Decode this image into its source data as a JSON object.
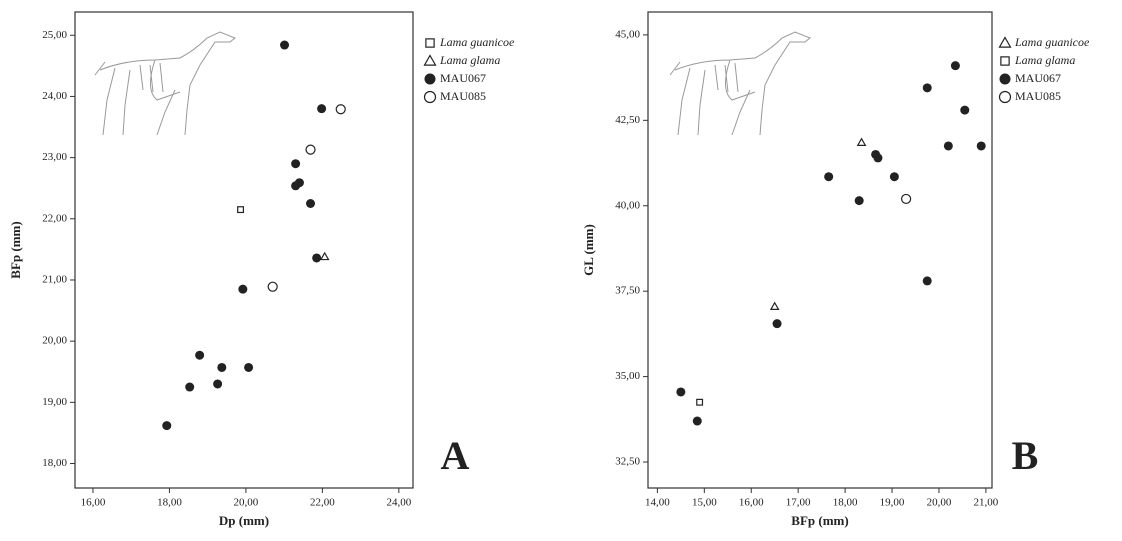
{
  "chart_data": [
    {
      "type": "scatter",
      "annotation": "A",
      "x_label": "Dp (mm)",
      "y_label": "BFp (mm)",
      "xlim": [
        15.53,
        24.37
      ],
      "ylim": [
        17.6,
        25.38
      ],
      "xticks": [
        {
          "value": 16,
          "label": "16,00"
        },
        {
          "value": 18,
          "label": "18,00"
        },
        {
          "value": 20,
          "label": "20,00"
        },
        {
          "value": 22,
          "label": "22,00"
        },
        {
          "value": 24,
          "label": "24,00"
        }
      ],
      "yticks": [
        {
          "value": 18,
          "label": "18,00"
        },
        {
          "value": 19,
          "label": "19,00"
        },
        {
          "value": 20,
          "label": "20,00"
        },
        {
          "value": 21,
          "label": "21,00"
        },
        {
          "value": 22,
          "label": "22,00"
        },
        {
          "value": 23,
          "label": "23,00"
        },
        {
          "value": 24,
          "label": "24,00"
        },
        {
          "value": 25,
          "label": "25,00"
        }
      ],
      "series": [
        {
          "name": "Lama guanicoe",
          "marker": "square",
          "italic": true,
          "color": "#222",
          "x": [
            19.86
          ],
          "values": [
            22.15
          ]
        },
        {
          "name": "Lama glama",
          "marker": "triangle",
          "italic": true,
          "color": "#222",
          "x": [
            22.06
          ],
          "values": [
            21.38
          ]
        },
        {
          "name": "MAU067",
          "marker": "circle",
          "italic": false,
          "color": "#222",
          "x": [
            21.01,
            21.98,
            21.3,
            21.4,
            21.3,
            21.69,
            21.85,
            19.92,
            18.79,
            19.37,
            20.07,
            18.53,
            19.26,
            17.93
          ],
          "values": [
            24.84,
            23.8,
            22.9,
            22.59,
            22.54,
            22.25,
            21.36,
            20.85,
            19.77,
            19.57,
            19.57,
            19.25,
            19.3,
            18.62
          ]
        },
        {
          "name": "MAU085",
          "marker": "open-circle",
          "italic": false,
          "color": "#222",
          "x": [
            22.48,
            21.69,
            20.7
          ],
          "values": [
            23.79,
            23.13,
            20.89
          ]
        }
      ]
    },
    {
      "type": "scatter",
      "annotation": "B",
      "x_label": "BFp (mm)",
      "y_label": "GL (mm)",
      "xlim": [
        13.8,
        21.13
      ],
      "ylim": [
        31.74,
        45.67
      ],
      "xticks": [
        {
          "value": 14,
          "label": "14,00"
        },
        {
          "value": 15,
          "label": "15,00"
        },
        {
          "value": 16,
          "label": "16,00"
        },
        {
          "value": 17,
          "label": "17,00"
        },
        {
          "value": 18,
          "label": "18,00"
        },
        {
          "value": 19,
          "label": "19,00"
        },
        {
          "value": 20,
          "label": "20,00"
        },
        {
          "value": 21,
          "label": "21,00"
        }
      ],
      "yticks": [
        {
          "value": 32.5,
          "label": "32,50"
        },
        {
          "value": 35,
          "label": "35,00"
        },
        {
          "value": 37.5,
          "label": "37,50"
        },
        {
          "value": 40,
          "label": "40,00"
        },
        {
          "value": 42.5,
          "label": "42,50"
        },
        {
          "value": 45,
          "label": "45,00"
        }
      ],
      "series": [
        {
          "name": "Lama guanicoe",
          "marker": "triangle",
          "italic": true,
          "color": "#222",
          "x": [
            18.35,
            16.5
          ],
          "values": [
            41.85,
            37.05
          ]
        },
        {
          "name": "Lama glama",
          "marker": "square",
          "italic": true,
          "color": "#222",
          "x": [
            14.9
          ],
          "values": [
            34.25
          ]
        },
        {
          "name": "MAU067",
          "marker": "circle",
          "italic": false,
          "color": "#222",
          "x": [
            20.35,
            19.75,
            20.55,
            20.2,
            20.9,
            18.65,
            18.7,
            17.65,
            19.05,
            18.3,
            19.75,
            16.55,
            14.5,
            14.85
          ],
          "values": [
            44.1,
            43.45,
            42.8,
            41.75,
            41.75,
            41.5,
            41.4,
            40.85,
            40.85,
            40.15,
            37.8,
            36.55,
            34.55,
            33.7
          ]
        },
        {
          "name": "MAU085",
          "marker": "open-circle",
          "italic": false,
          "color": "#222",
          "x": [
            19.3
          ],
          "values": [
            40.2
          ]
        }
      ]
    }
  ]
}
